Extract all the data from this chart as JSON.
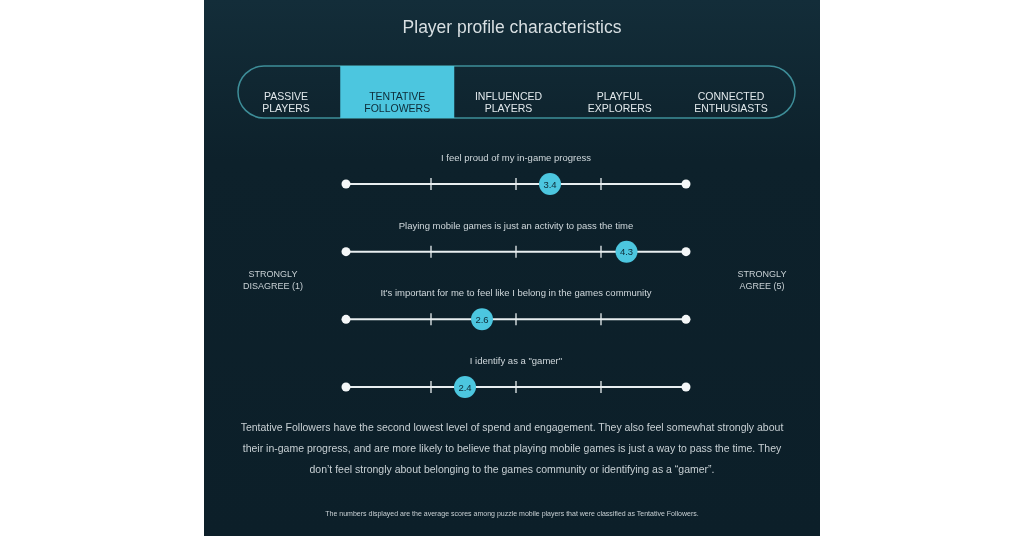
{
  "chart_data": {
    "type": "scatter",
    "orientation": "horizontal",
    "title": "Player profile characteristics",
    "categories": [
      "I feel proud of my in-game progress",
      "Playing mobile games is just an activity to pass the time",
      "It's important for me to feel like I belong in the games community",
      "I identify as a \"gamer\""
    ],
    "values": [
      3.4,
      4.3,
      2.6,
      2.4
    ],
    "color": "#4cc6df",
    "marker": "circle",
    "data_labels": true,
    "grid": "y",
    "xlim": [
      1,
      5
    ],
    "tick_labels": "y",
    "annotations": [
      "PASSIVE PLAYERS",
      "TENTATIVE FOLLOWERS",
      "INFLUENCED PLAYERS",
      "PLAYFUL EXPLORERS",
      "CONNECTED ENTHUSIASTS",
      "STRONGLY DISAGREE (1)",
      "STRONGLY AGREE (5)",
      "Tentative Followers have the second lowest level of spend and engagement. They also feel somewhat strongly about their in-game progress, and are more likely to believe that playing mobile games is just a way to pass the time. They don’t feel strongly about belonging to the games community or identifying as a “gamer”.",
      "The numbers displayed are the average scores among puzzle mobile players that were classified as Tentative Followers."
    ]
  }
}
